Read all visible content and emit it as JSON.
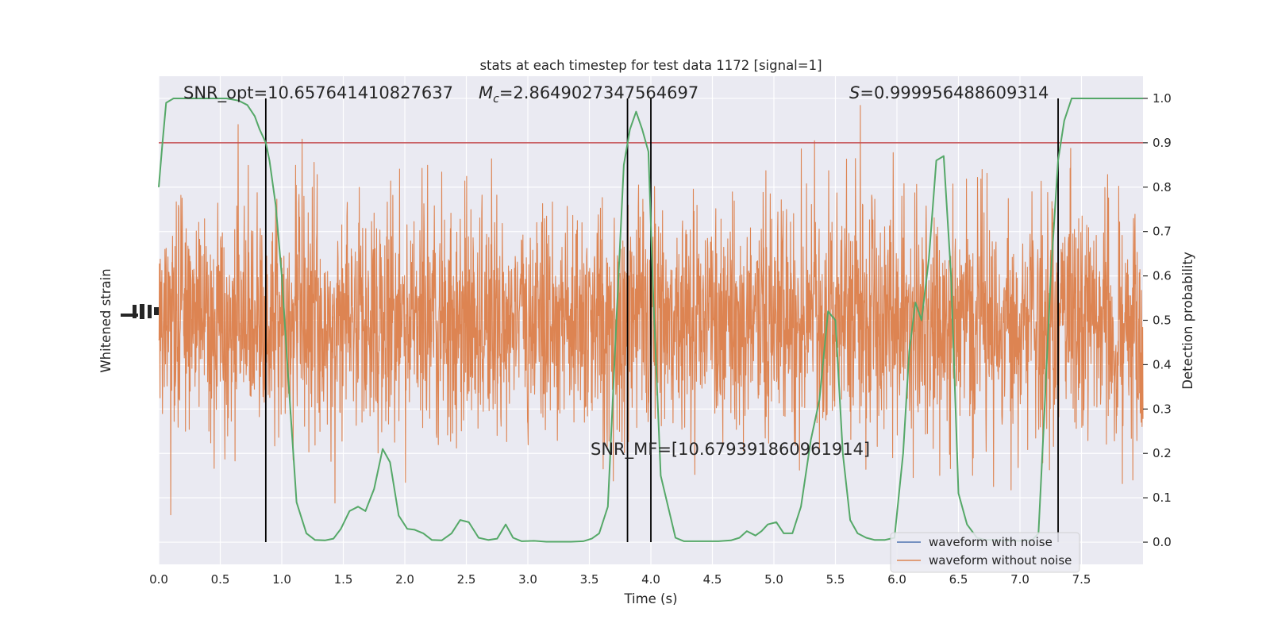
{
  "chart_data": {
    "type": "line",
    "title": "stats at each timestep for test data 1172 [signal=1]",
    "xlabel": "Time (s)",
    "ylabel_left": "Whitened strain",
    "ylabel_right": "Detection probability",
    "xlim": [
      0.0,
      8.0
    ],
    "ylim_right": [
      -0.05,
      1.05
    ],
    "x_ticks": [
      "0.0",
      "0.5",
      "1.0",
      "1.5",
      "2.0",
      "2.5",
      "3.0",
      "3.5",
      "4.0",
      "4.5",
      "5.0",
      "5.5",
      "6.0",
      "6.5",
      "7.0",
      "7.5"
    ],
    "y_right_ticks": [
      "0.0",
      "0.1",
      "0.2",
      "0.3",
      "0.4",
      "0.5",
      "0.6",
      "0.7",
      "0.8",
      "0.9",
      "1.0"
    ],
    "grid": true,
    "legend_position": "lower right",
    "threshold": 0.9,
    "detection_markers_x": [
      0.87,
      3.81,
      4.0,
      7.31
    ],
    "annotations": {
      "snr_opt": "SNR_opt=10.657641410827637",
      "mc_symbol": "M",
      "mc_sub": "c",
      "mc_value": "=2.8649027347564697",
      "s_symbol": "S",
      "s_value": "=0.999956488609314",
      "snr_mf": "SNR_MF=[10.679391860961914]"
    },
    "series": [
      {
        "name": "waveform with noise",
        "color": "#4c72b0"
      },
      {
        "name": "waveform without noise",
        "color": "#dd8452"
      }
    ],
    "detection_probability": {
      "color": "#55a868",
      "x": [
        0.0,
        0.03,
        0.06,
        0.12,
        0.18,
        0.25,
        0.35,
        0.45,
        0.55,
        0.65,
        0.72,
        0.78,
        0.82,
        0.87,
        0.9,
        0.95,
        1.0,
        1.05,
        1.12,
        1.2,
        1.27,
        1.35,
        1.42,
        1.48,
        1.55,
        1.62,
        1.68,
        1.75,
        1.82,
        1.88,
        1.95,
        2.02,
        2.08,
        2.15,
        2.22,
        2.3,
        2.38,
        2.45,
        2.52,
        2.6,
        2.68,
        2.75,
        2.82,
        2.88,
        2.95,
        3.05,
        3.15,
        3.25,
        3.35,
        3.45,
        3.52,
        3.58,
        3.65,
        3.72,
        3.78,
        3.83,
        3.88,
        3.93,
        3.98,
        4.02,
        4.08,
        4.14,
        4.2,
        4.27,
        4.35,
        4.45,
        4.55,
        4.65,
        4.72,
        4.78,
        4.85,
        4.9,
        4.95,
        5.02,
        5.08,
        5.15,
        5.22,
        5.3,
        5.37,
        5.44,
        5.5,
        5.56,
        5.62,
        5.68,
        5.75,
        5.82,
        5.9,
        5.98,
        6.05,
        6.1,
        6.15,
        6.2,
        6.26,
        6.32,
        6.38,
        6.44,
        6.5,
        6.57,
        6.65,
        6.72,
        6.8,
        6.9,
        7.0,
        7.1,
        7.15,
        7.2,
        7.25,
        7.31,
        7.36,
        7.42,
        7.48,
        7.6,
        7.75,
        7.9,
        8.0
      ],
      "y": [
        0.8,
        0.9,
        0.99,
        1.0,
        1.0,
        1.0,
        1.0,
        1.0,
        1.0,
        0.995,
        0.985,
        0.96,
        0.93,
        0.9,
        0.86,
        0.76,
        0.6,
        0.38,
        0.09,
        0.02,
        0.005,
        0.004,
        0.008,
        0.03,
        0.07,
        0.08,
        0.07,
        0.12,
        0.21,
        0.18,
        0.06,
        0.03,
        0.028,
        0.02,
        0.005,
        0.004,
        0.02,
        0.05,
        0.045,
        0.01,
        0.005,
        0.008,
        0.04,
        0.01,
        0.002,
        0.003,
        0.001,
        0.001,
        0.001,
        0.002,
        0.008,
        0.02,
        0.08,
        0.5,
        0.85,
        0.93,
        0.97,
        0.93,
        0.88,
        0.55,
        0.15,
        0.08,
        0.01,
        0.002,
        0.002,
        0.002,
        0.002,
        0.004,
        0.01,
        0.025,
        0.015,
        0.025,
        0.04,
        0.045,
        0.02,
        0.02,
        0.08,
        0.23,
        0.32,
        0.52,
        0.5,
        0.2,
        0.05,
        0.02,
        0.01,
        0.005,
        0.005,
        0.01,
        0.2,
        0.43,
        0.54,
        0.5,
        0.64,
        0.86,
        0.87,
        0.6,
        0.11,
        0.04,
        0.01,
        0.005,
        0.005,
        0.003,
        0.003,
        0.005,
        0.02,
        0.3,
        0.6,
        0.86,
        0.95,
        1.0,
        1.0,
        1.0,
        1.0,
        1.0,
        1.0
      ]
    }
  }
}
